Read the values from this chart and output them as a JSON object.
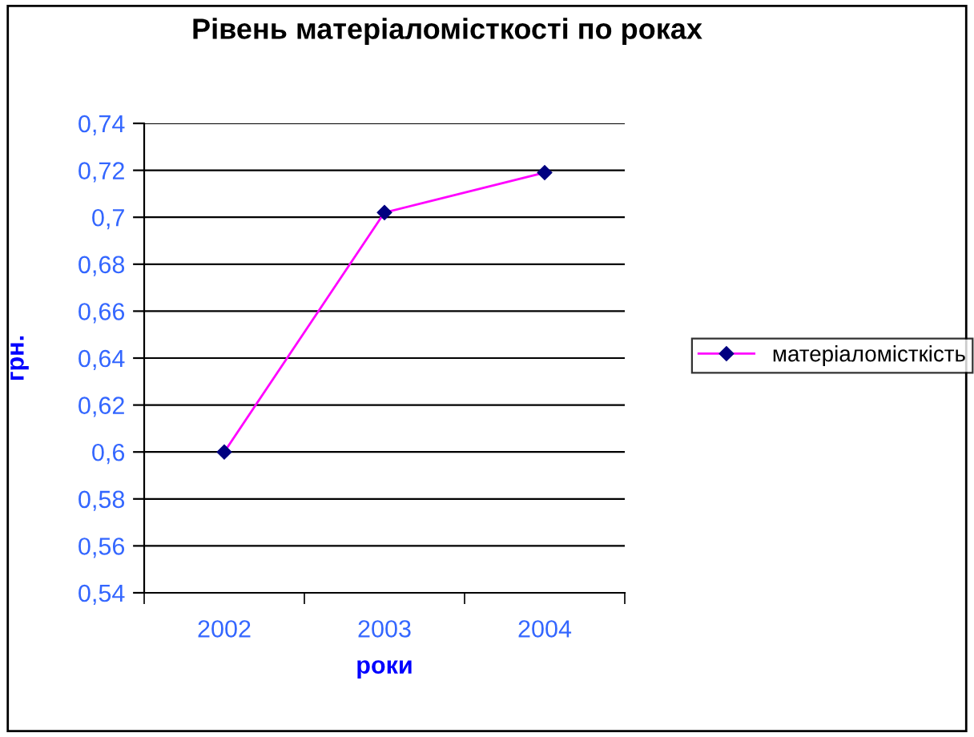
{
  "chart_data": {
    "type": "line",
    "title": "Рівень матеріаломісткості по роках",
    "xlabel": "роки",
    "ylabel": "грн.",
    "categories": [
      "2002",
      "2003",
      "2004"
    ],
    "series": [
      {
        "name": "матеріаломісткість",
        "color": "#ff00ff",
        "values": [
          0.6,
          0.702,
          0.719
        ]
      }
    ],
    "ylim": [
      0.54,
      0.74
    ],
    "yticks": [
      {
        "value": 0.54,
        "label": "0,54"
      },
      {
        "value": 0.56,
        "label": "0,56"
      },
      {
        "value": 0.58,
        "label": "0,58"
      },
      {
        "value": 0.6,
        "label": "0,6"
      },
      {
        "value": 0.62,
        "label": "0,62"
      },
      {
        "value": 0.64,
        "label": "0,64"
      },
      {
        "value": 0.66,
        "label": "0,66"
      },
      {
        "value": 0.68,
        "label": "0,68"
      },
      {
        "value": 0.7,
        "label": "0,7"
      },
      {
        "value": 0.72,
        "label": "0,72"
      },
      {
        "value": 0.74,
        "label": "0,74"
      }
    ],
    "grid": "y",
    "legend": "right",
    "marker": "diamond",
    "line_style": "solid"
  }
}
